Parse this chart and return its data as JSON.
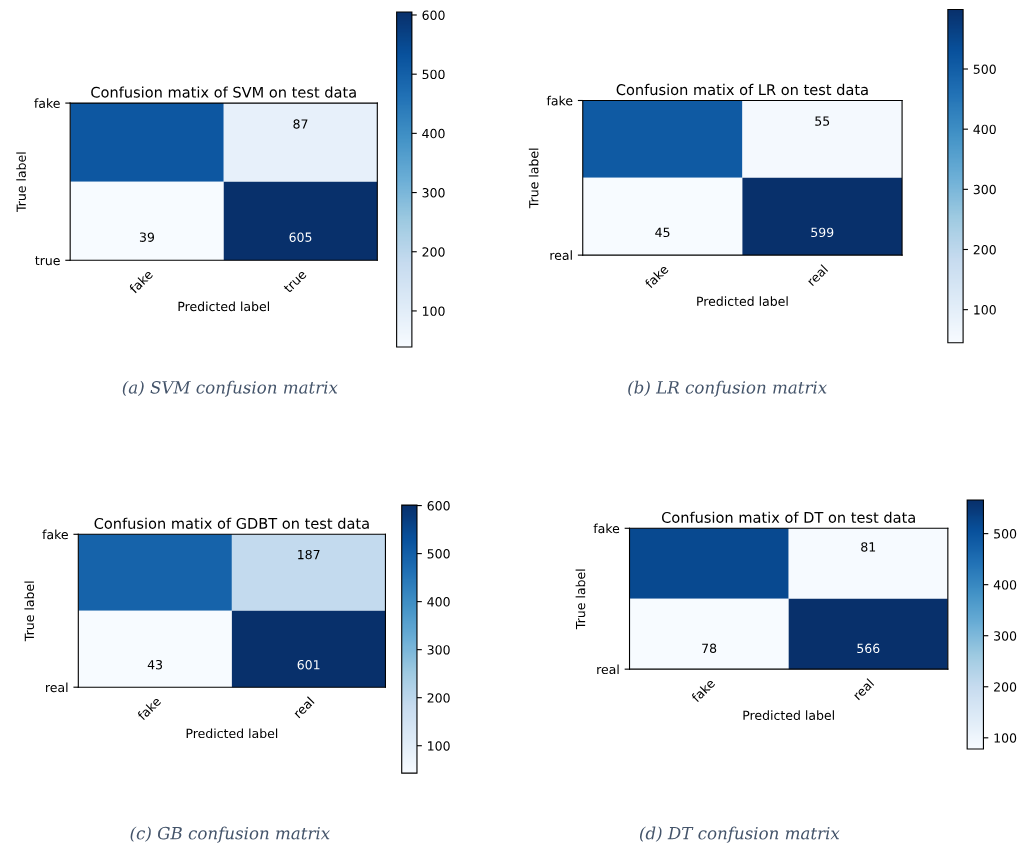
{
  "chart_data": [
    {
      "type": "heatmap",
      "title": "Confusion matix of SVM on test data",
      "xlabel": "Predicted label",
      "ylabel": "True label",
      "categories": [
        "fake",
        "true"
      ],
      "y_categories": [
        "fake",
        "true"
      ],
      "cells": [
        [
          520,
          87
        ],
        [
          39,
          605
        ]
      ],
      "cell_labels": [
        [
          null,
          "87"
        ],
        [
          "39",
          "605"
        ]
      ],
      "clim": [
        39,
        605
      ],
      "cticks": [
        100,
        200,
        300,
        400,
        500,
        600
      ],
      "annotations": [
        "(a) SVM confusion matrix"
      ]
    },
    {
      "type": "heatmap",
      "title": "Confusion matix of LR on test data",
      "xlabel": "Predicted label",
      "ylabel": "True label",
      "categories": [
        "fake",
        "real"
      ],
      "y_categories": [
        "fake",
        "real"
      ],
      "cells": [
        [
          510,
          55
        ],
        [
          45,
          599
        ]
      ],
      "cell_labels": [
        [
          null,
          "55"
        ],
        [
          "45",
          "599"
        ]
      ],
      "clim": [
        45,
        599
      ],
      "cticks": [
        100,
        200,
        300,
        400,
        500
      ],
      "annotations": [
        "(b) LR confusion matrix"
      ]
    },
    {
      "type": "heatmap",
      "title": "Confusion matix of GDBT on test data",
      "xlabel": "Predicted label",
      "ylabel": "True label",
      "categories": [
        "fake",
        "real"
      ],
      "y_categories": [
        "fake",
        "real"
      ],
      "cells": [
        [
          490,
          187
        ],
        [
          43,
          601
        ]
      ],
      "cell_labels": [
        [
          null,
          "187"
        ],
        [
          "43",
          "601"
        ]
      ],
      "clim": [
        43,
        601
      ],
      "cticks": [
        100,
        200,
        300,
        400,
        500,
        600
      ],
      "annotations": [
        "(c) GB confusion matrix"
      ]
    },
    {
      "type": "heatmap",
      "title": "Confusion matix of DT on test data",
      "xlabel": "Predicted label",
      "ylabel": "True label",
      "categories": [
        "fake",
        "real"
      ],
      "y_categories": [
        "fake",
        "real"
      ],
      "cells": [
        [
          520,
          81
        ],
        [
          78,
          566
        ]
      ],
      "cell_labels": [
        [
          null,
          "81"
        ],
        [
          "78",
          "566"
        ]
      ],
      "clim": [
        78,
        566
      ],
      "cticks": [
        100,
        200,
        300,
        400,
        500
      ],
      "annotations": [
        "(d) DT confusion matrix"
      ]
    }
  ]
}
